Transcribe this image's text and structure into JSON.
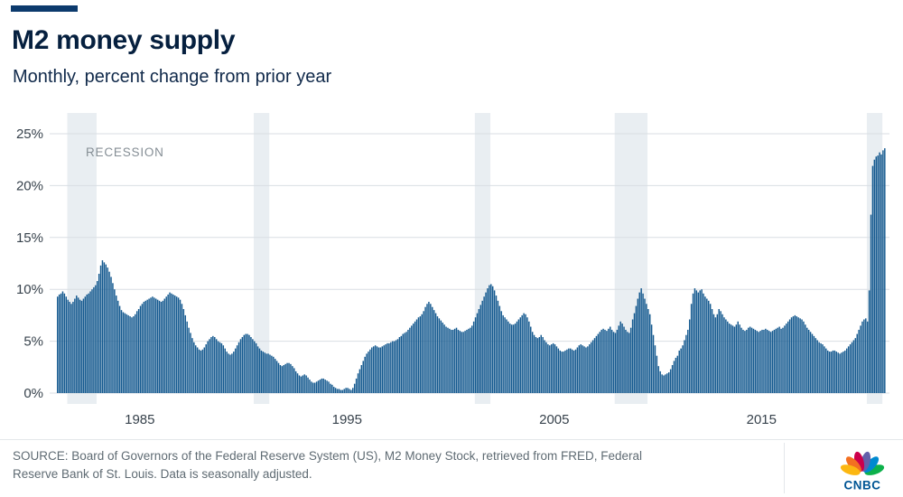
{
  "header": {
    "title": "M2 money supply",
    "subtitle": "Monthly, percent change from prior year"
  },
  "footer": {
    "source_lines": [
      "SOURCE: Board of Governors of the Federal Reserve System (US), M2 Money Stock, retrieved from FRED, Federal",
      "Reserve Bank of St. Louis. Data is seasonally adjusted."
    ],
    "logo_text": "CNBC",
    "logo_feather_colors": [
      "#FCB711",
      "#F37021",
      "#CC004C",
      "#6460AA",
      "#0089D0",
      "#0DB14B"
    ]
  },
  "colors": {
    "bar": "#14598f",
    "accent_bar": "#0c3a6d",
    "title_text": "#06203f",
    "recession_band": "#e9eef2",
    "grid": "#d9dee3",
    "tick_text": "#37424c",
    "muted_text": "#5f6b73",
    "logo_blue": "#005594"
  },
  "chart_data": {
    "type": "bar",
    "title": "M2 money supply",
    "subtitle": "Monthly, percent change from prior year",
    "frequency": "monthly",
    "x_start": "1981-01",
    "x_end": "2020-12",
    "unit": "%",
    "ylim": [
      0,
      27
    ],
    "grid": true,
    "y_ticks": [
      0,
      5,
      10,
      15,
      20,
      25
    ],
    "y_tick_labels": [
      "0%",
      "5%",
      "10%",
      "15%",
      "20%",
      "25%"
    ],
    "x_tick_labels": [
      "1985",
      "1995",
      "2005",
      "2015"
    ],
    "x_tick_month_index": [
      48,
      168,
      288,
      408
    ],
    "recession_label": "RECESSION",
    "recession_bands_month_index": [
      [
        6,
        23
      ],
      [
        114,
        123
      ],
      [
        242,
        251
      ],
      [
        323,
        342
      ],
      [
        469,
        478
      ]
    ],
    "series": [
      {
        "name": "M2 money stock, percent change from year ago",
        "values": [
          9.3,
          9.5,
          9.6,
          9.8,
          9.6,
          9.3,
          9.0,
          8.8,
          8.6,
          8.8,
          9.1,
          9.4,
          9.2,
          9.0,
          8.9,
          9.1,
          9.3,
          9.5,
          9.6,
          9.8,
          10.0,
          10.2,
          10.4,
          10.8,
          11.5,
          12.3,
          12.8,
          12.6,
          12.4,
          12.1,
          11.7,
          11.2,
          10.6,
          10.0,
          9.4,
          8.9,
          8.4,
          8.0,
          7.8,
          7.7,
          7.6,
          7.5,
          7.4,
          7.3,
          7.4,
          7.6,
          7.9,
          8.1,
          8.4,
          8.6,
          8.8,
          8.9,
          9.0,
          9.1,
          9.2,
          9.3,
          9.2,
          9.1,
          9.0,
          8.9,
          8.8,
          8.9,
          9.1,
          9.3,
          9.5,
          9.7,
          9.6,
          9.5,
          9.4,
          9.3,
          9.2,
          9.0,
          8.6,
          8.1,
          7.5,
          6.9,
          6.3,
          5.8,
          5.3,
          4.9,
          4.6,
          4.4,
          4.2,
          4.1,
          4.2,
          4.4,
          4.7,
          5.0,
          5.2,
          5.4,
          5.5,
          5.4,
          5.2,
          5.0,
          4.9,
          4.8,
          4.6,
          4.3,
          4.0,
          3.8,
          3.7,
          3.8,
          4.0,
          4.3,
          4.6,
          4.9,
          5.2,
          5.4,
          5.6,
          5.7,
          5.7,
          5.6,
          5.4,
          5.2,
          5.0,
          4.8,
          4.5,
          4.3,
          4.1,
          4.0,
          3.9,
          3.8,
          3.8,
          3.7,
          3.6,
          3.5,
          3.3,
          3.1,
          2.9,
          2.7,
          2.6,
          2.7,
          2.8,
          2.9,
          2.9,
          2.8,
          2.6,
          2.4,
          2.1,
          1.9,
          1.7,
          1.6,
          1.7,
          1.8,
          1.7,
          1.5,
          1.3,
          1.1,
          1.0,
          1.0,
          1.1,
          1.2,
          1.3,
          1.4,
          1.4,
          1.3,
          1.2,
          1.1,
          0.9,
          0.8,
          0.6,
          0.5,
          0.4,
          0.4,
          0.3,
          0.3,
          0.4,
          0.5,
          0.5,
          0.4,
          0.3,
          0.5,
          0.9,
          1.4,
          1.9,
          2.3,
          2.7,
          3.1,
          3.5,
          3.8,
          4.0,
          4.2,
          4.4,
          4.5,
          4.6,
          4.5,
          4.4,
          4.4,
          4.5,
          4.6,
          4.7,
          4.8,
          4.8,
          4.9,
          5.0,
          5.0,
          5.1,
          5.2,
          5.4,
          5.5,
          5.7,
          5.8,
          5.9,
          6.1,
          6.3,
          6.5,
          6.7,
          6.9,
          7.1,
          7.3,
          7.4,
          7.6,
          7.9,
          8.3,
          8.6,
          8.8,
          8.6,
          8.3,
          8.0,
          7.7,
          7.4,
          7.2,
          7.0,
          6.8,
          6.6,
          6.4,
          6.3,
          6.2,
          6.1,
          6.1,
          6.2,
          6.3,
          6.1,
          6.0,
          5.9,
          5.9,
          6.0,
          6.1,
          6.2,
          6.3,
          6.5,
          6.9,
          7.3,
          7.7,
          8.1,
          8.5,
          8.9,
          9.3,
          9.7,
          10.1,
          10.4,
          10.5,
          10.3,
          9.9,
          9.4,
          8.9,
          8.4,
          7.9,
          7.5,
          7.3,
          7.1,
          6.9,
          6.7,
          6.6,
          6.6,
          6.7,
          6.9,
          7.1,
          7.3,
          7.5,
          7.7,
          7.6,
          7.3,
          6.9,
          6.4,
          5.9,
          5.6,
          5.4,
          5.3,
          5.4,
          5.6,
          5.4,
          5.1,
          4.9,
          4.7,
          4.6,
          4.7,
          4.8,
          4.7,
          4.5,
          4.3,
          4.1,
          4.0,
          4.0,
          4.1,
          4.2,
          4.3,
          4.3,
          4.2,
          4.1,
          4.2,
          4.4,
          4.6,
          4.7,
          4.6,
          4.5,
          4.4,
          4.5,
          4.7,
          4.9,
          5.1,
          5.3,
          5.5,
          5.7,
          5.9,
          6.1,
          6.2,
          6.1,
          6.0,
          6.2,
          6.4,
          6.1,
          5.9,
          5.8,
          6.1,
          6.5,
          6.9,
          6.7,
          6.4,
          6.1,
          5.9,
          5.8,
          6.3,
          7.1,
          7.7,
          8.4,
          9.1,
          9.7,
          10.1,
          9.6,
          9.1,
          8.6,
          8.1,
          7.6,
          6.6,
          5.6,
          4.6,
          3.6,
          2.6,
          2.1,
          1.8,
          1.7,
          1.8,
          1.9,
          2.0,
          2.3,
          2.7,
          3.1,
          3.4,
          3.6,
          4.1,
          4.3,
          4.6,
          5.1,
          5.6,
          6.1,
          7.1,
          8.6,
          9.6,
          10.1,
          9.9,
          9.7,
          9.9,
          10.0,
          9.6,
          9.3,
          9.1,
          8.9,
          8.6,
          8.1,
          7.6,
          7.3,
          7.6,
          8.1,
          7.9,
          7.6,
          7.3,
          7.1,
          6.9,
          6.7,
          6.6,
          6.5,
          6.4,
          6.6,
          6.9,
          6.6,
          6.3,
          6.1,
          6.0,
          6.1,
          6.3,
          6.4,
          6.3,
          6.2,
          6.1,
          6.0,
          5.9,
          6.0,
          6.1,
          6.1,
          6.2,
          6.1,
          6.0,
          5.9,
          6.0,
          6.1,
          6.2,
          6.3,
          6.4,
          6.2,
          6.3,
          6.5,
          6.7,
          6.9,
          7.1,
          7.3,
          7.4,
          7.5,
          7.4,
          7.3,
          7.2,
          7.1,
          6.9,
          6.6,
          6.3,
          6.1,
          5.9,
          5.7,
          5.5,
          5.3,
          5.1,
          4.9,
          4.8,
          4.7,
          4.5,
          4.3,
          4.1,
          4.0,
          4.0,
          4.1,
          4.1,
          4.0,
          3.9,
          3.8,
          3.9,
          4.0,
          4.1,
          4.3,
          4.5,
          4.7,
          4.9,
          5.1,
          5.3,
          5.7,
          6.1,
          6.5,
          6.9,
          7.1,
          7.2,
          6.9,
          9.9,
          17.2,
          21.9,
          22.5,
          22.8,
          22.9,
          23.2,
          23.0,
          23.4,
          23.6
        ]
      }
    ]
  }
}
